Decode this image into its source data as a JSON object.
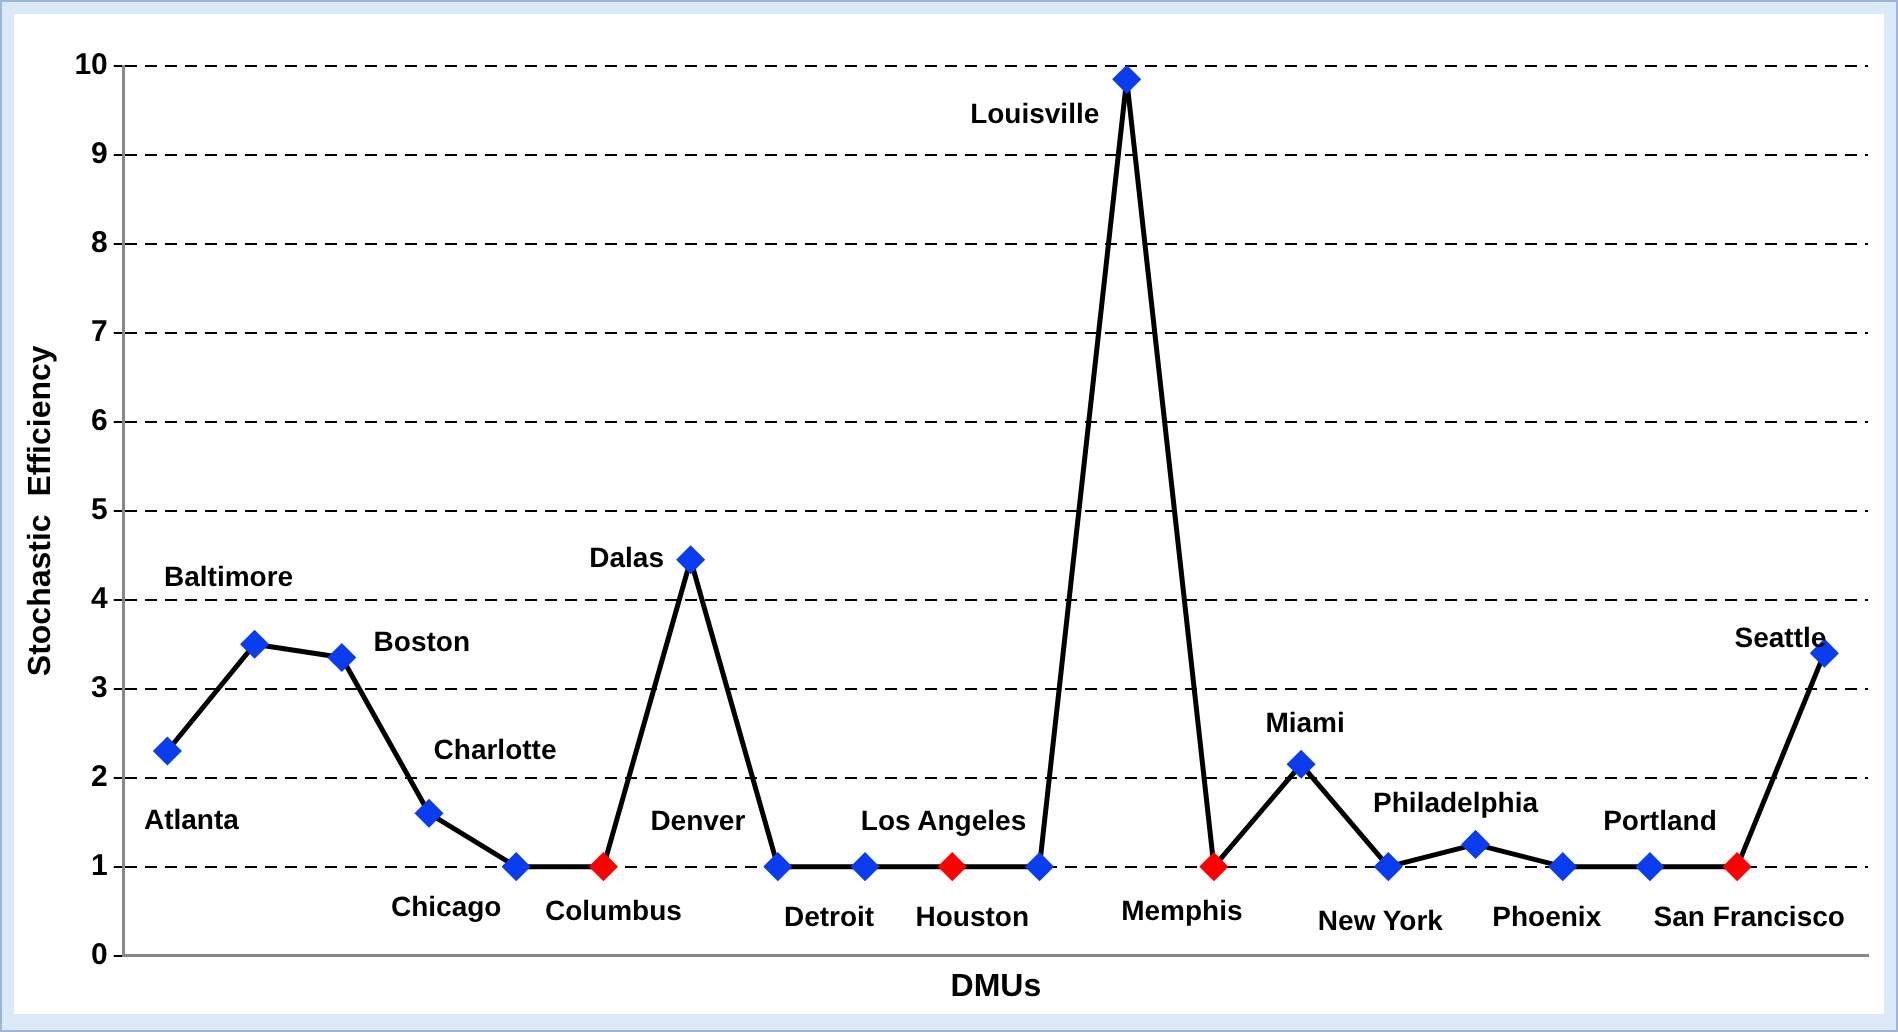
{
  "chart_data": {
    "type": "line",
    "xlabel": "DMUs",
    "ylabel": "Stochastic  Efficiency",
    "categories": [
      null,
      null,
      null,
      null,
      null,
      null,
      null,
      null,
      null,
      null,
      null,
      null,
      null,
      null,
      null,
      null,
      null,
      null,
      null,
      null
    ],
    "series": [
      {
        "color": "#000000",
        "colors": [
          "#0a3cf0",
          "#0a3cf0",
          "#0a3cf0",
          "#0a3cf0",
          "#0a3cf0",
          "#ff0000",
          "#0a3cf0",
          "#0a3cf0",
          "#0a3cf0",
          "#ff0000",
          "#0a3cf0",
          "#0a3cf0",
          "#ff0000",
          "#0a3cf0",
          "#0a3cf0",
          "#0a3cf0",
          "#0a3cf0",
          "#0a3cf0",
          "#ff0000",
          "#0a3cf0"
        ],
        "values": [
          2.3,
          3.5,
          3.35,
          1.6,
          1,
          1,
          4.45,
          1,
          1,
          1,
          1,
          9.85,
          1,
          2.15,
          1,
          1.25,
          1,
          1,
          1,
          3.4
        ]
      }
    ],
    "annotations": [
      "Atlanta",
      "Baltimore",
      "Boston",
      "Charlotte",
      "Chicago",
      "Columbus",
      "Dalas",
      "Denver",
      "Detroit",
      "Houston",
      "Los Angeles",
      "Louisville",
      "Memphis",
      "Miami",
      "New York",
      "Philadelphia",
      "Phoenix",
      "Portland",
      "San Francisco",
      "Seattle"
    ],
    "ylim": [
      0,
      10
    ],
    "yticks": [
      0,
      1,
      2,
      3,
      4,
      5,
      6,
      7,
      8,
      9,
      10
    ],
    "grid": "y",
    "marker": "diamond",
    "line_style": "solid",
    "tick_labels": "y"
  }
}
